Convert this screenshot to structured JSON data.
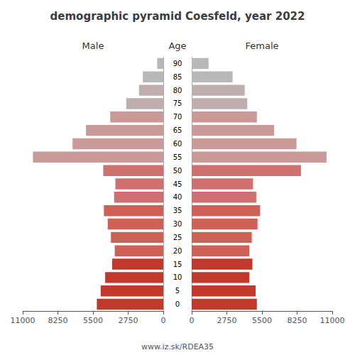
{
  "chart_data": {
    "type": "bar",
    "orientation": "horizontal",
    "title": "demographic pyramid Coesfeld, year 2022",
    "ylabel": "Age",
    "annotations": [
      "www.iz.sk/RDEA35"
    ],
    "categories": [
      "0",
      "5",
      "10",
      "15",
      "20",
      "25",
      "30",
      "35",
      "40",
      "45",
      "50",
      "55",
      "60",
      "65",
      "70",
      "75",
      "80",
      "85",
      "90"
    ],
    "series": [
      {
        "name": "Male",
        "values": [
          5200,
          4900,
          4550,
          4000,
          3800,
          4100,
          4350,
          4650,
          3850,
          3750,
          4700,
          10200,
          7100,
          6050,
          4150,
          2900,
          1900,
          1600,
          480
        ],
        "colors": [
          "#c0392b",
          "#c0392b",
          "#c0392b",
          "#c0392b",
          "#cd6155",
          "#cd6155",
          "#cd6155",
          "#cd6155",
          "#d07070",
          "#d07070",
          "#d07070",
          "#cc9999",
          "#cc9999",
          "#cc9999",
          "#cc9999",
          "#c0aeae",
          "#c0aeae",
          "#b8b8b8",
          "#b8b8b8"
        ]
      },
      {
        "name": "Female",
        "values": [
          5100,
          5000,
          4500,
          4750,
          4500,
          4700,
          5150,
          5350,
          5050,
          4800,
          8550,
          10550,
          8200,
          6450,
          5100,
          4350,
          4150,
          3200,
          1320
        ],
        "colors": [
          "#c0392b",
          "#c0392b",
          "#c0392b",
          "#c0392b",
          "#cd6155",
          "#cd6155",
          "#cd6155",
          "#cd6155",
          "#d07070",
          "#d07070",
          "#d07070",
          "#cc9999",
          "#cc9999",
          "#cc9999",
          "#cc9999",
          "#c0aeae",
          "#c0aeae",
          "#b8b8b8",
          "#b8b8b8"
        ]
      }
    ],
    "xlim": [
      0,
      11000
    ],
    "xticks": [
      0,
      2750,
      5500,
      8250,
      11000
    ],
    "grid": false
  }
}
